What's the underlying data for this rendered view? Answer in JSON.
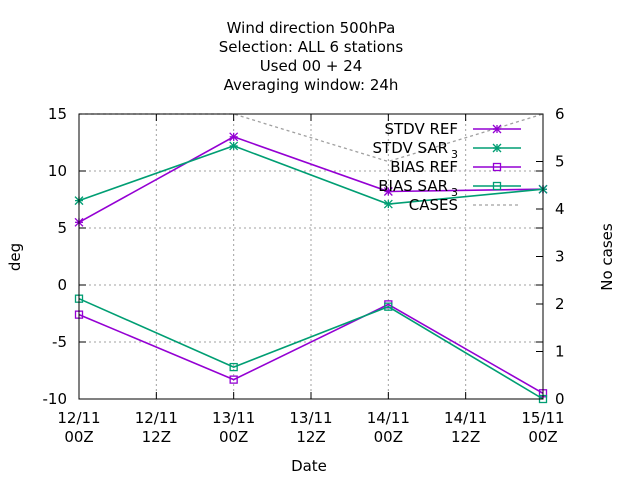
{
  "title_lines": [
    "Wind direction 500hPa",
    "Selection: ALL      6 stations",
    "Used  00 + 24",
    "Averaging window: 24h"
  ],
  "chart_data": {
    "type": "line",
    "xlabel": "Date",
    "ylabel": "deg",
    "y2label": "No cases",
    "x_ticks": [
      [
        "12/11",
        "00Z"
      ],
      [
        "12/11",
        "12Z"
      ],
      [
        "13/11",
        "00Z"
      ],
      [
        "13/11",
        "12Z"
      ],
      [
        "14/11",
        "00Z"
      ],
      [
        "14/11",
        "12Z"
      ],
      [
        "15/11",
        "00Z"
      ]
    ],
    "x_tick_hours": [
      0,
      12,
      24,
      36,
      48,
      60,
      72
    ],
    "xlim_hours": [
      0,
      72
    ],
    "ylim": [
      -10,
      15
    ],
    "y_ticks": [
      -10,
      -5,
      0,
      5,
      10,
      15
    ],
    "y2lim": [
      0,
      6
    ],
    "y2_ticks": [
      0,
      1,
      2,
      3,
      4,
      5,
      6
    ],
    "grid": true,
    "legend_position": "top-right",
    "series": [
      {
        "name": "STDV REF",
        "axis": "y",
        "marker": "star",
        "color": "#9400d3",
        "x_hours": [
          0,
          24,
          48,
          72
        ],
        "values": [
          5.5,
          13.0,
          8.2,
          8.4
        ]
      },
      {
        "name": "STDV SAR",
        "name_subscript": "3",
        "axis": "y",
        "marker": "star",
        "color": "#009e73",
        "x_hours": [
          0,
          24,
          48,
          72
        ],
        "values": [
          7.4,
          12.2,
          7.1,
          8.4
        ]
      },
      {
        "name": "BIAS REF",
        "axis": "y",
        "marker": "square",
        "color": "#9400d3",
        "x_hours": [
          0,
          24,
          48,
          72
        ],
        "values": [
          -2.6,
          -8.3,
          -1.7,
          -9.5
        ]
      },
      {
        "name": "BIAS SAR",
        "name_subscript": "3",
        "axis": "y",
        "marker": "square",
        "color": "#009e73",
        "x_hours": [
          0,
          24,
          48,
          72
        ],
        "values": [
          -1.2,
          -7.2,
          -1.9,
          -10.0
        ]
      },
      {
        "name": "CASES",
        "axis": "y2",
        "marker": "none",
        "dashed": true,
        "color": "#a0a0a0",
        "x_hours": [
          0,
          24,
          48,
          72
        ],
        "values": [
          6,
          6,
          5,
          6
        ]
      }
    ]
  }
}
